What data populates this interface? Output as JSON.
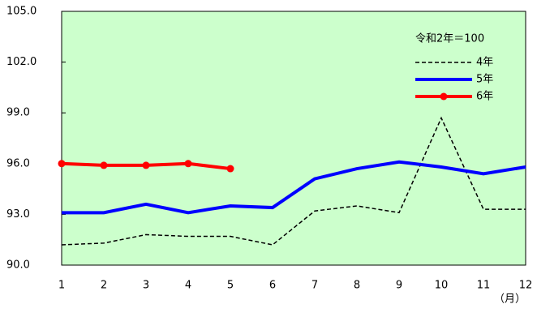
{
  "chart_data": {
    "type": "line",
    "note": "令和2年＝100",
    "x_unit": "（月）",
    "categories": [
      1,
      2,
      3,
      4,
      5,
      6,
      7,
      8,
      9,
      10,
      11,
      12
    ],
    "series": [
      {
        "name": "4年",
        "color": "#000000",
        "dash": true,
        "marker": false,
        "values": [
          91.2,
          91.3,
          91.8,
          91.7,
          91.7,
          91.2,
          93.2,
          93.5,
          93.1,
          98.7,
          93.3,
          93.3
        ]
      },
      {
        "name": "5年",
        "color": "#0000ff",
        "dash": false,
        "marker": false,
        "values": [
          93.1,
          93.1,
          93.6,
          93.1,
          93.5,
          93.4,
          95.1,
          95.7,
          96.1,
          95.8,
          95.4,
          95.8
        ]
      },
      {
        "name": "6年",
        "color": "#ff0000",
        "dash": false,
        "marker": true,
        "values": [
          96.0,
          95.9,
          95.9,
          96.0,
          95.7,
          null,
          null,
          null,
          null,
          null,
          null,
          null
        ]
      }
    ],
    "ylim": [
      90,
      105
    ],
    "yticks": [
      {
        "value": 90,
        "label": "90.0"
      },
      {
        "value": 93,
        "label": "93.0"
      },
      {
        "value": 96,
        "label": "96.0"
      },
      {
        "value": 99,
        "label": "99.0"
      },
      {
        "value": 102,
        "label": "102.0"
      },
      {
        "value": 105,
        "label": "105.0"
      }
    ],
    "background": "#ccffcc"
  }
}
